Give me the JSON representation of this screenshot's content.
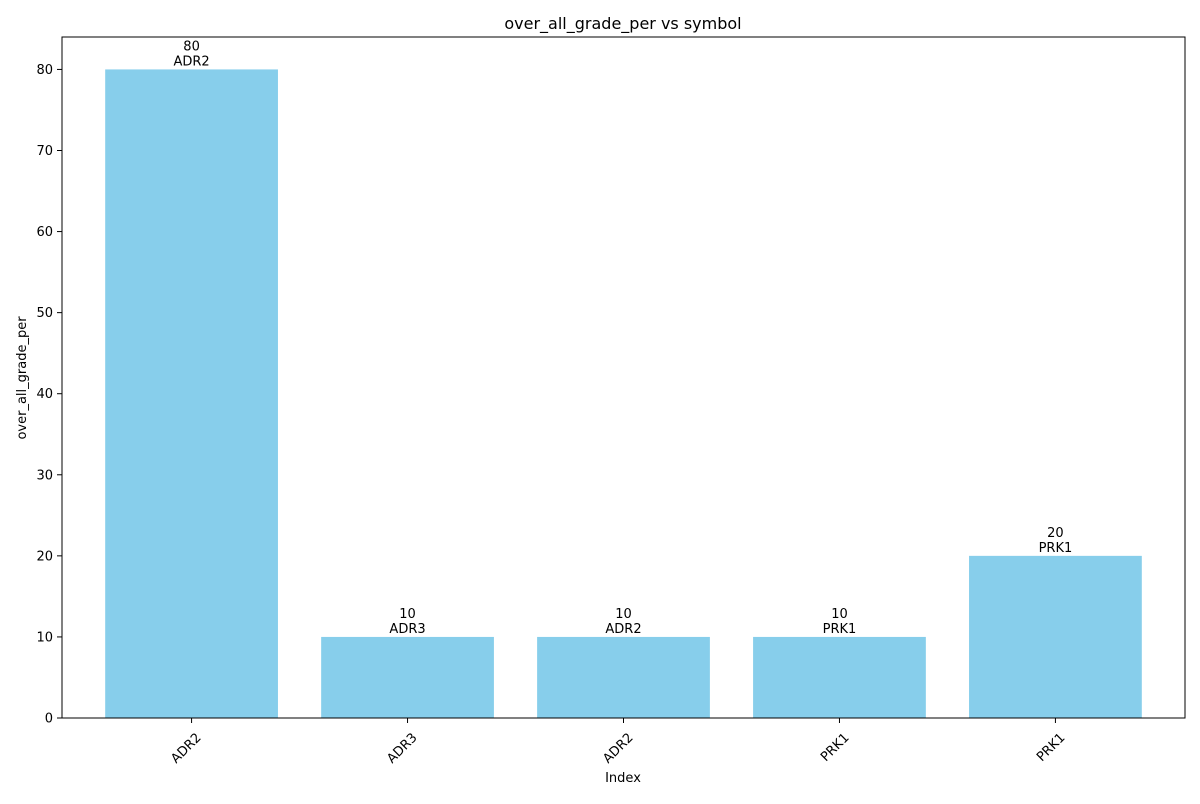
{
  "chart_data": {
    "type": "bar",
    "title": "over_all_grade_per vs symbol",
    "xlabel": "Index",
    "ylabel": "over_all_grade_per",
    "categories": [
      "ADR2",
      "ADR3",
      "ADR2",
      "PRK1",
      "PRK1"
    ],
    "values": [
      80,
      10,
      10,
      10,
      20
    ],
    "data_labels": [
      {
        "value": "80",
        "symbol": "ADR2"
      },
      {
        "value": "10",
        "symbol": "ADR3"
      },
      {
        "value": "10",
        "symbol": "ADR2"
      },
      {
        "value": "10",
        "symbol": "PRK1"
      },
      {
        "value": "20",
        "symbol": "PRK1"
      }
    ],
    "ylim": [
      0,
      84
    ],
    "yticks": [
      0,
      10,
      20,
      30,
      40,
      50,
      60,
      70,
      80
    ],
    "ytick_labels": [
      "0",
      "10",
      "20",
      "30",
      "40",
      "50",
      "60",
      "70",
      "80"
    ],
    "xtick_rotation_deg": 45,
    "grid": false,
    "legend": "none",
    "bar_color": "#87CEEB",
    "axis_color": "#000000"
  }
}
